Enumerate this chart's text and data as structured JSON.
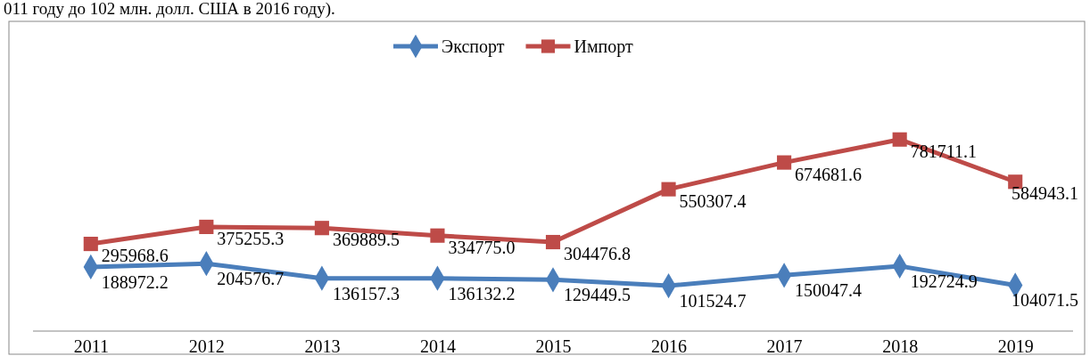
{
  "chart_data": {
    "type": "line",
    "annotations": [
      "011 году до 102 млн. долл. США в 2016 году)."
    ],
    "categories": [
      "2011",
      "2012",
      "2013",
      "2014",
      "2015",
      "2016",
      "2017",
      "2018",
      "2019"
    ],
    "series": [
      {
        "name": "Экспорт",
        "color": "#4a7ebb",
        "marker": "diamond",
        "values": [
          188972.2,
          204576.7,
          136157.3,
          136132.2,
          129449.5,
          101524.7,
          150047.4,
          192724.9,
          104071.5
        ],
        "value_labels": [
          "188972.2",
          "204576.7",
          "136157.3",
          "136132.2",
          "129449.5",
          "101524.7",
          "150047.4",
          "192724.9",
          "104071.5"
        ]
      },
      {
        "name": "Импорт",
        "color": "#be4b48",
        "marker": "square",
        "values": [
          295968.6,
          375255.3,
          369889.5,
          334775.0,
          304476.8,
          550307.4,
          674681.6,
          781711.1,
          584943.1
        ],
        "value_labels": [
          "295968.6",
          "375255.3",
          "369889.5",
          "334775.0",
          "304476.8",
          "550307.4",
          "674681.6",
          "781711.1",
          "584943.1"
        ]
      }
    ],
    "legend": "top",
    "tick_labels": "x",
    "line_style": "solid"
  }
}
